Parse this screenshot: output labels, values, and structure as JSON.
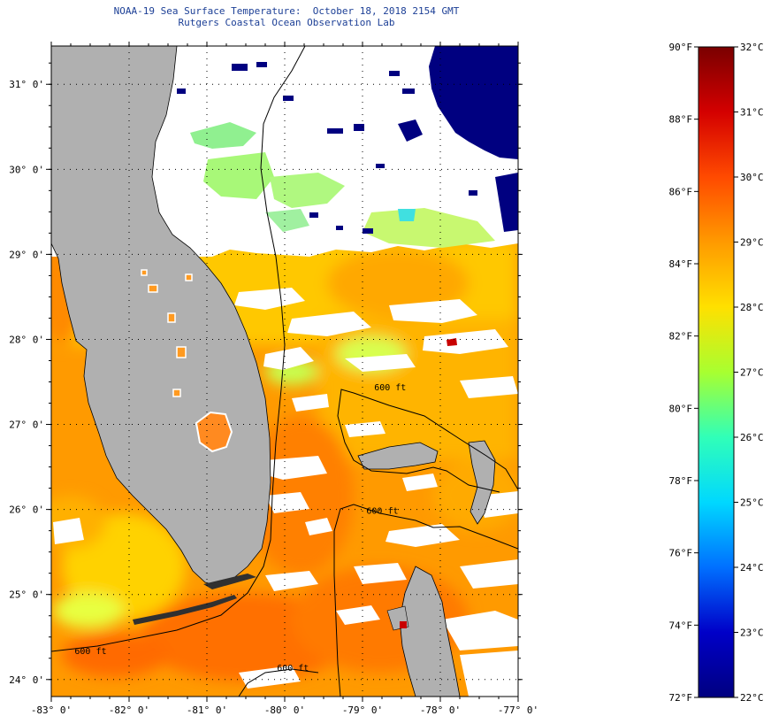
{
  "header": {
    "title": "NOAA-19 Sea Surface Temperature:  October 18, 2018 2154 GMT",
    "subtitle": "Rutgers Coastal Ocean Observation Lab"
  },
  "map": {
    "lon_range": [
      -83,
      -77
    ],
    "lat_range": [
      23.8,
      31.45
    ],
    "lon_ticks": [
      {
        "value": -83,
        "label": "-83° 0'"
      },
      {
        "value": -82,
        "label": "-82° 0'"
      },
      {
        "value": -81,
        "label": "-81° 0'"
      },
      {
        "value": -80,
        "label": "-80° 0'"
      },
      {
        "value": -79,
        "label": "-79° 0'"
      },
      {
        "value": -78,
        "label": "-78° 0'"
      },
      {
        "value": -77,
        "label": "-77° 0'"
      }
    ],
    "lat_ticks": [
      {
        "value": 24,
        "label": "24° 0'"
      },
      {
        "value": 25,
        "label": "25° 0'"
      },
      {
        "value": 26,
        "label": "26° 0'"
      },
      {
        "value": 27,
        "label": "27° 0'"
      },
      {
        "value": 28,
        "label": "28° 0'"
      },
      {
        "value": 29,
        "label": "29° 0'"
      },
      {
        "value": 30,
        "label": "30° 0'"
      },
      {
        "value": 31,
        "label": "31° 0'"
      }
    ],
    "contour_labels": [
      {
        "text": "600 ft",
        "lon": -78.85,
        "lat": 27.4
      },
      {
        "text": "600 ft",
        "lon": -78.95,
        "lat": 25.95
      },
      {
        "text": "600 ft",
        "lon": -82.7,
        "lat": 24.3
      },
      {
        "text": "600 ft",
        "lon": -80.1,
        "lat": 24.1
      }
    ],
    "colors": {
      "land": "#b0b0b0",
      "cloud": "#ffffff",
      "grid": "#000000"
    }
  },
  "colorbar": {
    "fahrenheit": [
      {
        "value": 90,
        "label": "90°F"
      },
      {
        "value": 88,
        "label": "88°F"
      },
      {
        "value": 86,
        "label": "86°F"
      },
      {
        "value": 84,
        "label": "84°F"
      },
      {
        "value": 82,
        "label": "82°F"
      },
      {
        "value": 80,
        "label": "80°F"
      },
      {
        "value": 78,
        "label": "78°F"
      },
      {
        "value": 76,
        "label": "76°F"
      },
      {
        "value": 74,
        "label": "74°F"
      },
      {
        "value": 72,
        "label": "72°F"
      }
    ],
    "celsius": [
      {
        "value": 32,
        "label": "32°C"
      },
      {
        "value": 31,
        "label": "31°C"
      },
      {
        "value": 30,
        "label": "30°C"
      },
      {
        "value": 29,
        "label": "29°C"
      },
      {
        "value": 28,
        "label": "28°C"
      },
      {
        "value": 27,
        "label": "27°C"
      },
      {
        "value": 26,
        "label": "26°C"
      },
      {
        "value": 25,
        "label": "25°C"
      },
      {
        "value": 24,
        "label": "24°C"
      },
      {
        "value": 23,
        "label": "23°C"
      },
      {
        "value": 22,
        "label": "22°C"
      }
    ],
    "gradient_colors": [
      "#7a0000",
      "#d40000",
      "#ff4a00",
      "#ff9a00",
      "#ffe000",
      "#a8ff30",
      "#30ffb8",
      "#00d8ff",
      "#0070ff",
      "#0000c8",
      "#000080"
    ]
  }
}
